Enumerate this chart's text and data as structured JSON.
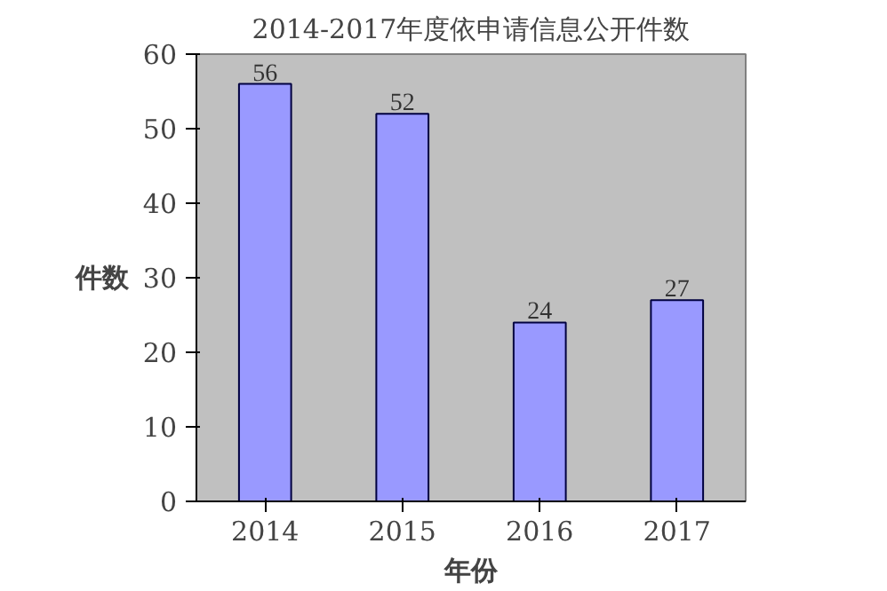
{
  "chart_data": {
    "type": "bar",
    "title": "2014-2017年度依申请信息公开件数",
    "xlabel": "年份",
    "ylabel": "件数",
    "categories": [
      "2014",
      "2015",
      "2016",
      "2017"
    ],
    "values": [
      56,
      52,
      24,
      27
    ],
    "color": "#9999ff",
    "data_labels": true,
    "ylim": [
      0,
      60
    ],
    "yticks": [
      0,
      10,
      20,
      30,
      40,
      50,
      60
    ],
    "grid": false
  }
}
